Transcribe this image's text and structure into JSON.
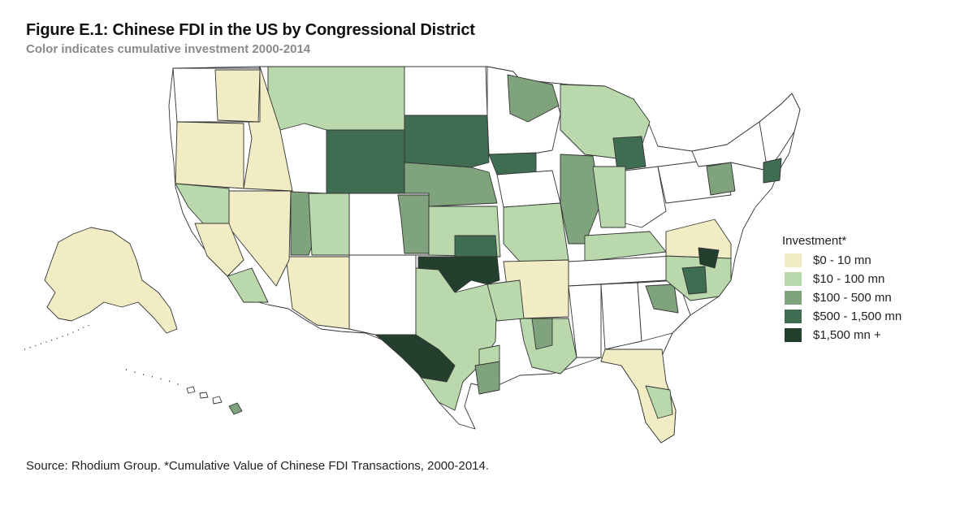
{
  "header": {
    "title": "Figure E.1: Chinese FDI in the US by Congressional District",
    "subtitle": "Color indicates cumulative investment 2000-2014"
  },
  "legend": {
    "title": "Investment*",
    "items": [
      {
        "label": "$0 - 10 mn",
        "color": "#f2ecc5"
      },
      {
        "label": "$10 - 100 mn",
        "color": "#b9d9ad"
      },
      {
        "label": "$100 - 500 mn",
        "color": "#7fa37c"
      },
      {
        "label": "$500 - 1,500 mn",
        "color": "#3f6d51"
      },
      {
        "label": "$1,500 mn +",
        "color": "#23402f"
      }
    ]
  },
  "footer": {
    "source": "Source: Rhodium Group. *Cumulative Value of Chinese FDI Transactions, 2000-2014."
  }
}
